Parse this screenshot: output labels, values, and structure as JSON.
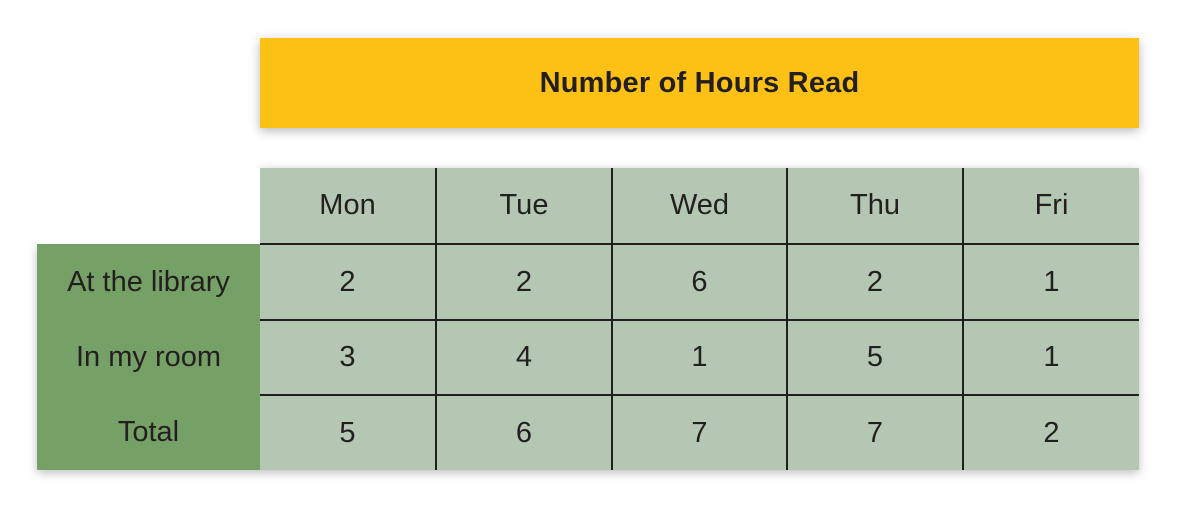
{
  "chart_data": {
    "type": "table",
    "title": "Number of Hours Read",
    "columns": [
      "Mon",
      "Tue",
      "Wed",
      "Thu",
      "Fri"
    ],
    "rows": [
      {
        "label": "At the library",
        "values": [
          "2",
          "2",
          "6",
          "2",
          "1"
        ]
      },
      {
        "label": "In my room",
        "values": [
          "3",
          "4",
          "1",
          "5",
          "1"
        ]
      },
      {
        "label": "Total",
        "values": [
          "5",
          "6",
          "7",
          "7",
          "2"
        ]
      }
    ]
  },
  "colors": {
    "title_background": "#fdc115",
    "row_header_background": "#75a066",
    "cell_background": "#b3c7b3",
    "text": "#231f20",
    "grid_lines": "#231f20"
  }
}
